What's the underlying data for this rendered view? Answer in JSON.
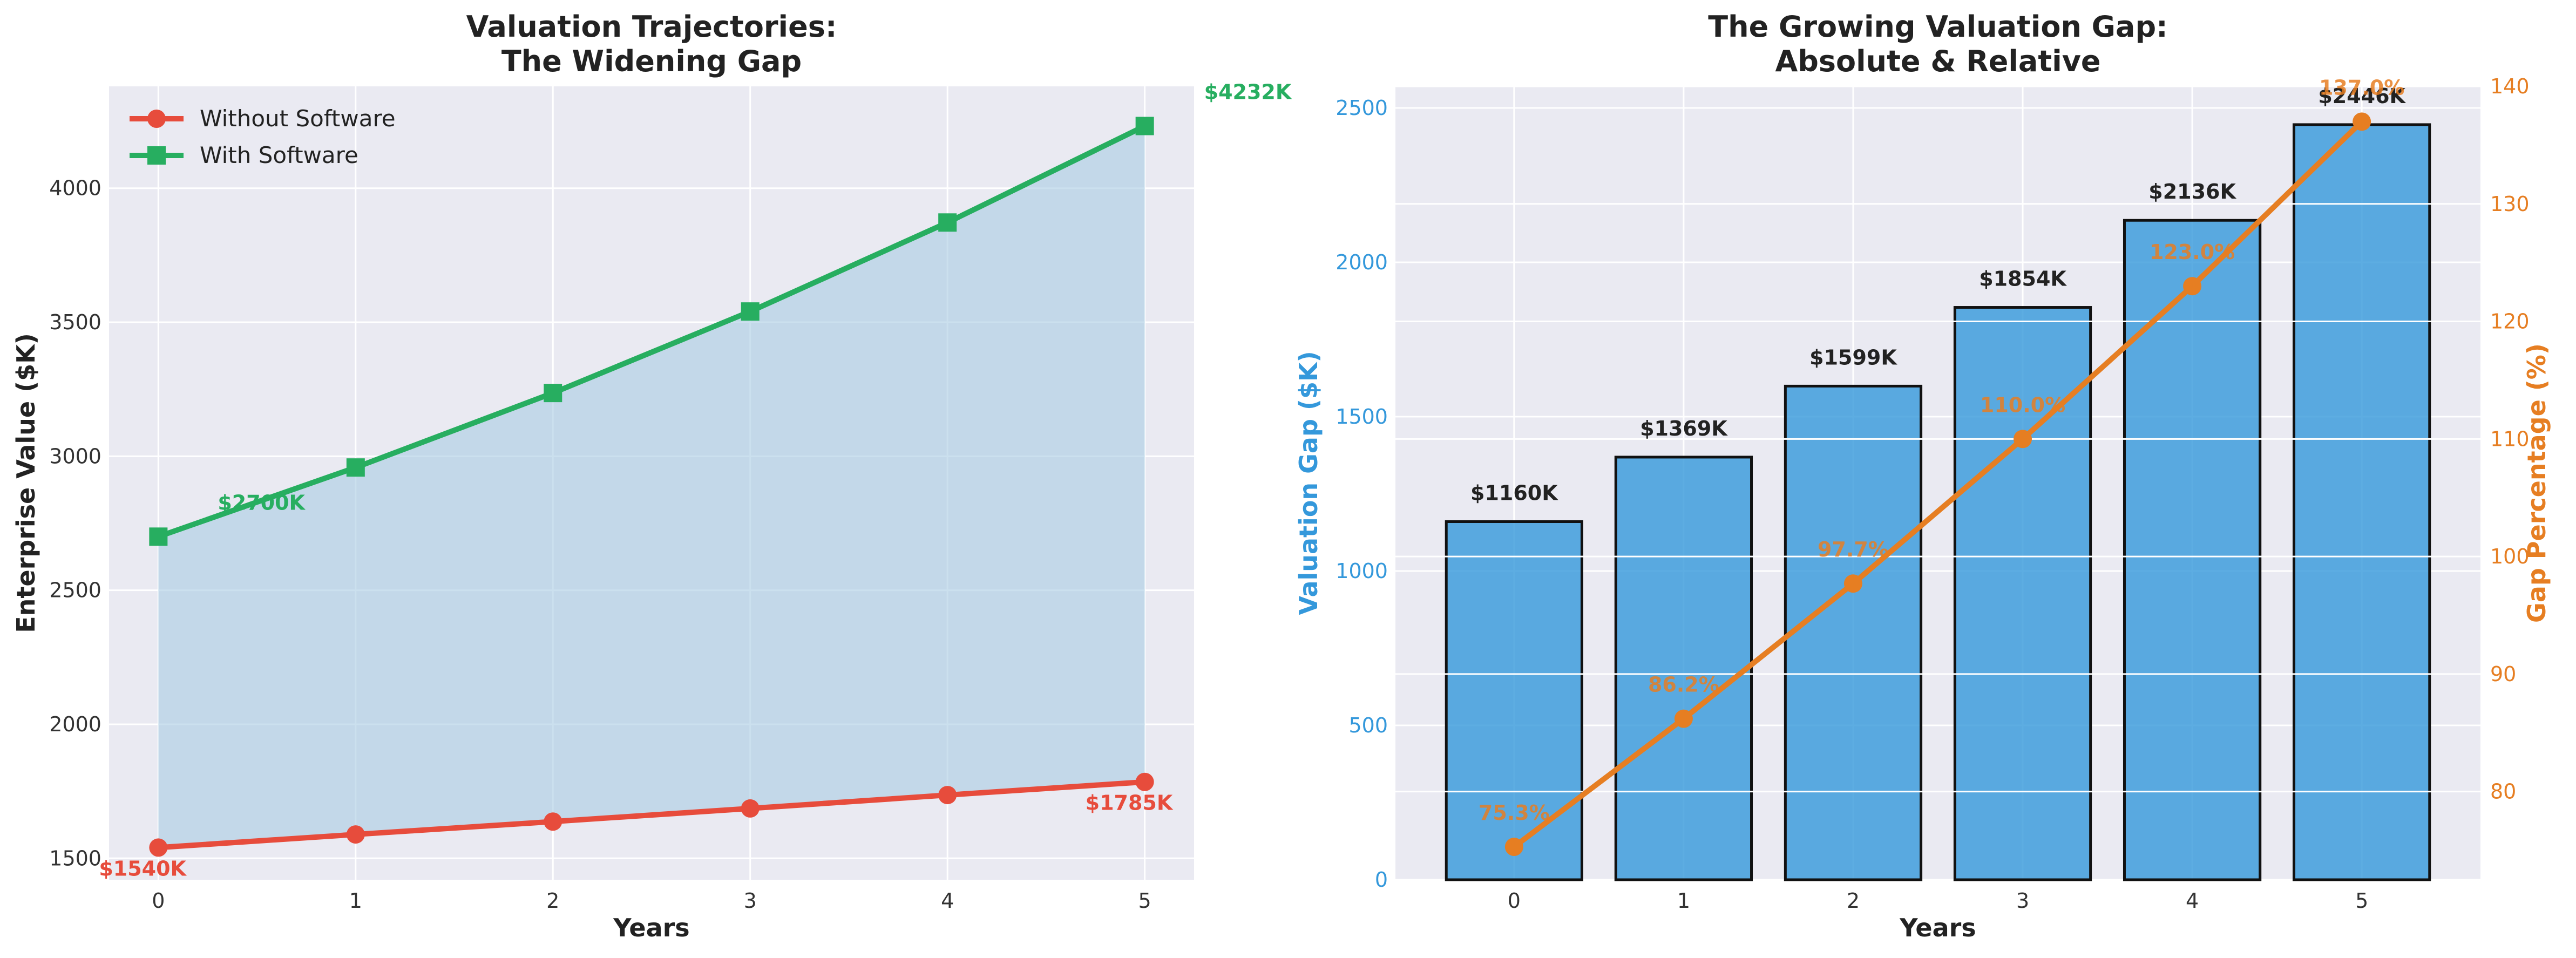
{
  "chart_data": [
    {
      "type": "line",
      "title_line1": "Valuation Trajectories:",
      "title_line2": "The Widening Gap",
      "xlabel": "Years",
      "ylabel": "Enterprise Value ($K)",
      "x": [
        0,
        1,
        2,
        3,
        4,
        5
      ],
      "xlim": [
        -0.25,
        5.25
      ],
      "ylim": [
        1420,
        4380
      ],
      "yticks": [
        1500,
        2000,
        2500,
        3000,
        3500,
        4000
      ],
      "grid": true,
      "legend_position": "top-left",
      "series": [
        {
          "name": "Without Software",
          "values": [
            1540,
            1589,
            1637,
            1686,
            1736,
            1785
          ],
          "color": "#e74c3c",
          "marker": "circle",
          "annotations": [
            {
              "x": 0,
              "text": "$1540K"
            },
            {
              "x": 5,
              "text": "$1785K"
            }
          ]
        },
        {
          "name": "With Software",
          "values": [
            2700,
            2958,
            3236,
            3540,
            3872,
            4232
          ],
          "color": "#27ae60",
          "marker": "square",
          "annotations": [
            {
              "x": 0,
              "text": "$2700K"
            },
            {
              "x": 5,
              "text": "$4232K"
            }
          ]
        }
      ],
      "fill_between_color": "#a9cce3"
    },
    {
      "type": "bar",
      "title_line1": "The Growing Valuation Gap:",
      "title_line2": "Absolute & Relative",
      "xlabel": "Years",
      "ylabel_left": "Valuation Gap ($K)",
      "ylabel_right": "Gap Percentage (%)",
      "categories": [
        0,
        1,
        2,
        3,
        4,
        5
      ],
      "xlim": [
        -0.7,
        5.7
      ],
      "ylim_left": [
        0,
        2570
      ],
      "yticks_left": [
        0,
        500,
        1000,
        1500,
        2000,
        2500
      ],
      "ylim_right": [
        72.5,
        140
      ],
      "yticks_right": [
        80,
        90,
        100,
        110,
        120,
        130,
        140
      ],
      "grid": true,
      "bars": {
        "values": [
          1160,
          1369,
          1599,
          1854,
          2136,
          2446
        ],
        "labels": [
          "$1160K",
          "$1369K",
          "$1599K",
          "$1854K",
          "$2136K",
          "$2446K"
        ],
        "color": "#3498db"
      },
      "line": {
        "values": [
          75.3,
          86.2,
          97.7,
          110.0,
          123.0,
          137.0
        ],
        "labels": [
          "75.3%",
          "86.2%",
          "97.7%",
          "110.0%",
          "123.0%",
          "137.0%"
        ],
        "color": "#e67e22"
      },
      "left_axis_color": "#3498db",
      "right_axis_color": "#e67e22"
    }
  ]
}
